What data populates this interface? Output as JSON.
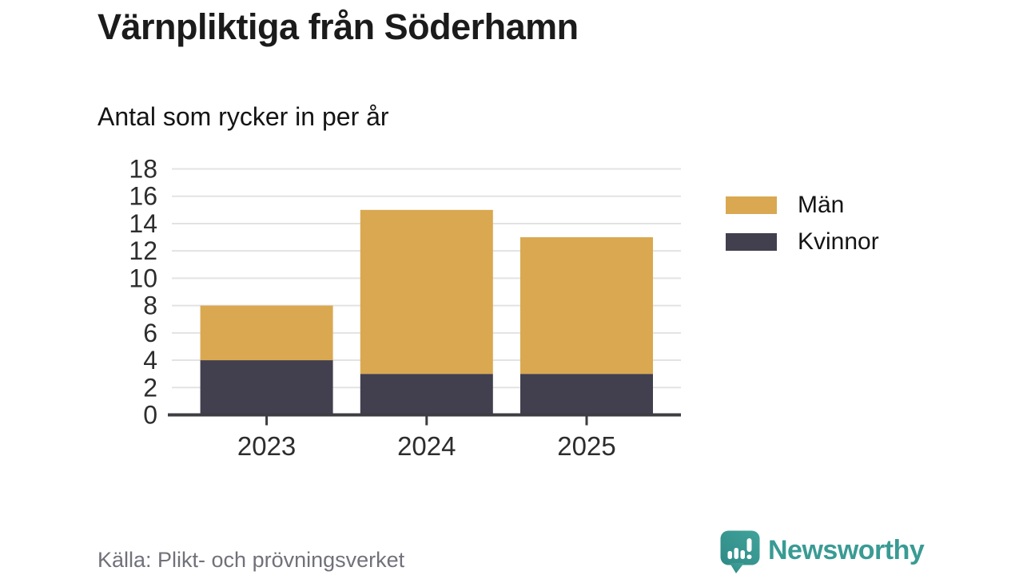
{
  "page": {
    "title": "Värnpliktiga från Söderhamn",
    "subtitle": "Antal som rycker in per år",
    "source": "Källa: Plikt- och prövningsverket"
  },
  "brand": {
    "name": "Newsworthy",
    "color": "#399b94",
    "icon": "speech-bubble-with-bar-chart-and-exclamation"
  },
  "legend": {
    "position": "right",
    "items": [
      {
        "label": "Män",
        "color": "#d9a850"
      },
      {
        "label": "Kvinnor",
        "color": "#423f4e"
      }
    ]
  },
  "chart_data": {
    "type": "bar",
    "stacked": true,
    "title": "Värnpliktiga från Söderhamn",
    "subtitle": "Antal som rycker in per år",
    "xlabel": "",
    "ylabel": "",
    "categories": [
      "2023",
      "2024",
      "2025"
    ],
    "series": [
      {
        "name": "Kvinnor",
        "color": "#423f4e",
        "values": [
          4,
          3,
          3
        ]
      },
      {
        "name": "Män",
        "color": "#d9a850",
        "values": [
          4,
          12,
          10
        ]
      }
    ],
    "totals": [
      8,
      15,
      13
    ],
    "ylim": [
      0,
      18
    ],
    "ytick_step": 2,
    "yticks": [
      0,
      2,
      4,
      6,
      8,
      10,
      12,
      14,
      16,
      18
    ],
    "grid": true,
    "gridline_color": "#e3e3e3",
    "axis_color": "#3d3d42",
    "tick_label_color": "#2d2d2d"
  }
}
